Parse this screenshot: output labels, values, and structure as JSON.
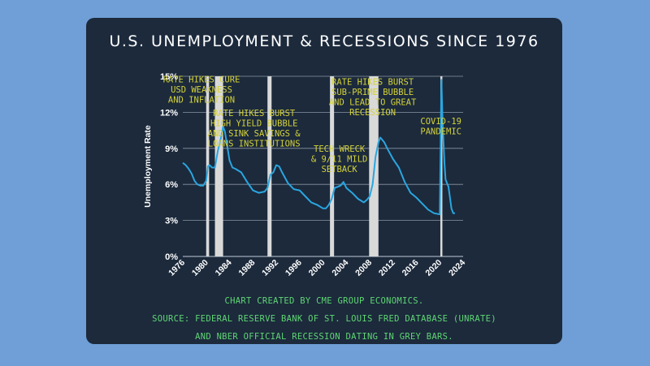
{
  "colors": {
    "page_bg": "#6f9fd6",
    "card_bg": "#1c2a3c",
    "line": "#2aa6e0",
    "recession": "#d9d9d9",
    "annotation": "#d4d23a",
    "notes": "#5fd673"
  },
  "notes": [
    "CHART CREATED BY CME GROUP ECONOMICS.",
    "SOURCE: FEDERAL RESERVE BANK OF ST. LOUIS FRED DATABASE (UNRATE)",
    "AND NBER OFFICIAL RECESSION DATING IN GREY BARS."
  ],
  "chart_data": {
    "type": "line",
    "title": "U.S. UNEMPLOYMENT & RECESSIONS SINCE 1976",
    "xlabel": "",
    "ylabel": "Unemployment Rate",
    "xlim": [
      1976,
      2024
    ],
    "ylim": [
      0,
      15
    ],
    "x_ticks": [
      "1976",
      "1980",
      "1984",
      "1988",
      "1992",
      "1996",
      "2000",
      "2004",
      "2008",
      "2012",
      "2016",
      "2020",
      "2024"
    ],
    "y_ticks": [
      "0%",
      "3%",
      "6%",
      "9%",
      "12%",
      "15%"
    ],
    "grid": "horizontal",
    "recessions": [
      [
        1980.0,
        1980.5
      ],
      [
        1981.5,
        1982.9
      ],
      [
        1990.5,
        1991.2
      ],
      [
        2001.2,
        2001.9
      ],
      [
        2007.9,
        2009.5
      ],
      [
        2020.1,
        2020.35
      ]
    ],
    "series": [
      {
        "x": [
          1976.0,
          1976.5,
          1977.0,
          1977.5,
          1978.0,
          1978.5,
          1979.0,
          1979.5,
          1980.0,
          1980.3,
          1980.6,
          1981.0,
          1981.5,
          1982.0,
          1982.5,
          1982.9,
          1983.2,
          1983.5,
          1984.0,
          1984.5,
          1985.0,
          1986.0,
          1987.0,
          1988.0,
          1989.0,
          1990.0,
          1990.5,
          1991.0,
          1991.5,
          1992.0,
          1992.5,
          1993.0,
          1994.0,
          1995.0,
          1996.0,
          1997.0,
          1998.0,
          1999.0,
          2000.0,
          2000.5,
          2001.0,
          2001.5,
          2002.0,
          2002.5,
          2003.0,
          2003.5,
          2004.0,
          2005.0,
          2006.0,
          2007.0,
          2007.5,
          2008.0,
          2008.5,
          2009.0,
          2009.5,
          2009.8,
          2010.0,
          2010.5,
          2011.0,
          2012.0,
          2013.0,
          2014.0,
          2015.0,
          2016.0,
          2017.0,
          2018.0,
          2019.0,
          2020.0,
          2020.28,
          2020.5,
          2020.8,
          2021.0,
          2021.5,
          2022.0,
          2022.3,
          2022.6
        ],
        "values": [
          7.8,
          7.6,
          7.3,
          6.9,
          6.3,
          6.0,
          5.9,
          5.9,
          6.3,
          7.5,
          7.6,
          7.4,
          7.4,
          8.8,
          9.8,
          10.8,
          10.4,
          9.5,
          8.0,
          7.4,
          7.3,
          7.0,
          6.2,
          5.5,
          5.3,
          5.4,
          5.7,
          6.8,
          7.0,
          7.6,
          7.5,
          7.0,
          6.1,
          5.6,
          5.5,
          5.0,
          4.5,
          4.3,
          4.0,
          4.0,
          4.3,
          4.8,
          5.7,
          5.8,
          5.9,
          6.2,
          5.7,
          5.3,
          4.8,
          4.5,
          4.7,
          5.0,
          6.0,
          8.3,
          9.5,
          9.9,
          9.8,
          9.5,
          9.0,
          8.1,
          7.4,
          6.2,
          5.3,
          4.9,
          4.4,
          3.9,
          3.6,
          3.5,
          14.7,
          11.0,
          7.8,
          6.4,
          5.8,
          4.0,
          3.6,
          3.6
        ]
      }
    ],
    "annotations": [
      {
        "lines": [
          "RATE HIKES CURE",
          "USD WEAKNESS",
          "AND INFLATION"
        ],
        "x": 1979.2,
        "y": 14.5
      },
      {
        "lines": [
          "RATE HIKES BURST",
          "HIGH YIELD BUBBLE",
          "AND SINK SAVINGS &",
          "LOANS INSTITUTIONS"
        ],
        "x": 1988.2,
        "y": 11.7
      },
      {
        "lines": [
          "TECH WRECK",
          "& 9/11 MILD",
          "SETBACK"
        ],
        "x": 2002.8,
        "y": 8.7
      },
      {
        "lines": [
          "RATE HIKES BURST",
          "SUB-PRIME BUBBLE",
          "AND LEAD TO GREAT",
          "RECESSION"
        ],
        "x": 2008.5,
        "y": 14.3
      },
      {
        "lines": [
          "COVID-19",
          "PANDEMIC"
        ],
        "x": 2020.2,
        "y": 11.0
      }
    ]
  }
}
